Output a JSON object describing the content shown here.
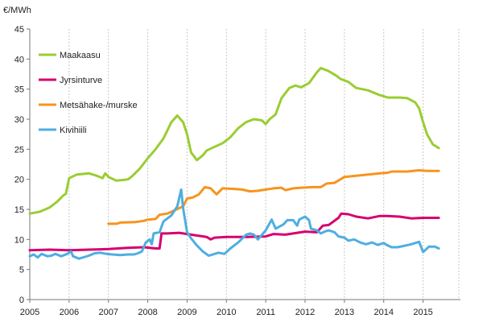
{
  "chart_data": {
    "type": "line",
    "title": "",
    "ylabel": "€/MWh",
    "xlabel": "",
    "xlim": [
      2005,
      2015.5
    ],
    "ylim": [
      0,
      45
    ],
    "x_ticks": [
      "2005",
      "2006",
      "2007",
      "2008",
      "2009",
      "2010",
      "2011",
      "2012",
      "2013",
      "2014",
      "2015"
    ],
    "y_ticks": [
      "0",
      "5",
      "10",
      "15",
      "20",
      "25",
      "30",
      "35",
      "40",
      "45"
    ],
    "grid": {
      "vertical": true,
      "horizontal": false
    },
    "legend_position": "top-left",
    "series": [
      {
        "name": "Maakaasu",
        "color": "#9acd32",
        "points": [
          [
            2005.0,
            14.3
          ],
          [
            2005.25,
            14.6
          ],
          [
            2005.5,
            15.3
          ],
          [
            2005.7,
            16.3
          ],
          [
            2005.85,
            17.3
          ],
          [
            2005.92,
            17.6
          ],
          [
            2006.0,
            20.2
          ],
          [
            2006.2,
            20.8
          ],
          [
            2006.5,
            21.0
          ],
          [
            2006.7,
            20.6
          ],
          [
            2006.85,
            20.2
          ],
          [
            2006.92,
            21.0
          ],
          [
            2007.0,
            20.4
          ],
          [
            2007.2,
            19.8
          ],
          [
            2007.4,
            19.9
          ],
          [
            2007.5,
            20.0
          ],
          [
            2007.6,
            20.5
          ],
          [
            2007.8,
            21.8
          ],
          [
            2008.0,
            23.5
          ],
          [
            2008.2,
            25.0
          ],
          [
            2008.4,
            26.8
          ],
          [
            2008.6,
            29.5
          ],
          [
            2008.75,
            30.6
          ],
          [
            2008.9,
            29.5
          ],
          [
            2009.0,
            27.5
          ],
          [
            2009.1,
            24.5
          ],
          [
            2009.25,
            23.2
          ],
          [
            2009.4,
            24.0
          ],
          [
            2009.5,
            24.8
          ],
          [
            2009.7,
            25.4
          ],
          [
            2009.9,
            26.0
          ],
          [
            2010.1,
            27.0
          ],
          [
            2010.3,
            28.5
          ],
          [
            2010.5,
            29.5
          ],
          [
            2010.7,
            30.0
          ],
          [
            2010.9,
            29.8
          ],
          [
            2011.0,
            29.2
          ],
          [
            2011.1,
            30.0
          ],
          [
            2011.25,
            30.8
          ],
          [
            2011.4,
            33.5
          ],
          [
            2011.6,
            35.2
          ],
          [
            2011.75,
            35.6
          ],
          [
            2011.9,
            35.3
          ],
          [
            2012.1,
            36.0
          ],
          [
            2012.3,
            37.8
          ],
          [
            2012.4,
            38.5
          ],
          [
            2012.6,
            38.0
          ],
          [
            2012.8,
            37.2
          ],
          [
            2012.9,
            36.7
          ],
          [
            2013.1,
            36.2
          ],
          [
            2013.3,
            35.2
          ],
          [
            2013.6,
            34.8
          ],
          [
            2013.9,
            34.0
          ],
          [
            2014.1,
            33.6
          ],
          [
            2014.4,
            33.6
          ],
          [
            2014.6,
            33.5
          ],
          [
            2014.8,
            32.8
          ],
          [
            2014.9,
            31.8
          ],
          [
            2015.0,
            29.5
          ],
          [
            2015.1,
            27.5
          ],
          [
            2015.25,
            25.8
          ],
          [
            2015.4,
            25.2
          ]
        ]
      },
      {
        "name": "Jyrsinturve",
        "color": "#d6006f",
        "points": [
          [
            2005.0,
            8.2
          ],
          [
            2005.5,
            8.3
          ],
          [
            2006.0,
            8.2
          ],
          [
            2006.5,
            8.3
          ],
          [
            2007.0,
            8.4
          ],
          [
            2007.5,
            8.6
          ],
          [
            2007.9,
            8.7
          ],
          [
            2008.2,
            8.5
          ],
          [
            2008.3,
            8.5
          ],
          [
            2008.35,
            11.0
          ],
          [
            2008.5,
            11.0
          ],
          [
            2008.8,
            11.1
          ],
          [
            2009.0,
            10.9
          ],
          [
            2009.5,
            10.4
          ],
          [
            2009.6,
            10.0
          ],
          [
            2009.7,
            10.3
          ],
          [
            2010.0,
            10.4
          ],
          [
            2010.5,
            10.4
          ],
          [
            2011.0,
            10.5
          ],
          [
            2011.2,
            10.9
          ],
          [
            2011.5,
            10.8
          ],
          [
            2011.8,
            11.1
          ],
          [
            2012.0,
            11.3
          ],
          [
            2012.3,
            11.2
          ],
          [
            2012.45,
            12.3
          ],
          [
            2012.6,
            12.4
          ],
          [
            2012.85,
            13.6
          ],
          [
            2012.92,
            14.3
          ],
          [
            2013.1,
            14.2
          ],
          [
            2013.3,
            13.8
          ],
          [
            2013.6,
            13.5
          ],
          [
            2013.9,
            13.9
          ],
          [
            2014.1,
            13.9
          ],
          [
            2014.4,
            13.8
          ],
          [
            2014.7,
            13.5
          ],
          [
            2015.0,
            13.6
          ],
          [
            2015.4,
            13.6
          ]
        ]
      },
      {
        "name": "Metsähake-/murske",
        "color": "#f7941d",
        "points": [
          [
            2007.0,
            12.6
          ],
          [
            2007.2,
            12.6
          ],
          [
            2007.3,
            12.8
          ],
          [
            2007.7,
            12.9
          ],
          [
            2007.9,
            13.1
          ],
          [
            2008.0,
            13.3
          ],
          [
            2008.2,
            13.4
          ],
          [
            2008.3,
            14.1
          ],
          [
            2008.5,
            14.3
          ],
          [
            2008.7,
            14.9
          ],
          [
            2008.9,
            15.5
          ],
          [
            2009.0,
            16.8
          ],
          [
            2009.15,
            17.0
          ],
          [
            2009.3,
            17.5
          ],
          [
            2009.45,
            18.7
          ],
          [
            2009.6,
            18.5
          ],
          [
            2009.75,
            17.5
          ],
          [
            2009.9,
            18.5
          ],
          [
            2010.2,
            18.4
          ],
          [
            2010.4,
            18.3
          ],
          [
            2010.6,
            18.0
          ],
          [
            2010.8,
            18.1
          ],
          [
            2011.0,
            18.3
          ],
          [
            2011.2,
            18.5
          ],
          [
            2011.4,
            18.6
          ],
          [
            2011.5,
            18.2
          ],
          [
            2011.7,
            18.5
          ],
          [
            2011.9,
            18.6
          ],
          [
            2012.2,
            18.7
          ],
          [
            2012.4,
            18.7
          ],
          [
            2012.55,
            19.3
          ],
          [
            2012.75,
            19.4
          ],
          [
            2012.85,
            19.8
          ],
          [
            2013.0,
            20.4
          ],
          [
            2013.3,
            20.6
          ],
          [
            2013.6,
            20.8
          ],
          [
            2013.9,
            21.0
          ],
          [
            2014.1,
            21.1
          ],
          [
            2014.2,
            21.3
          ],
          [
            2014.4,
            21.3
          ],
          [
            2014.6,
            21.3
          ],
          [
            2014.9,
            21.5
          ],
          [
            2015.1,
            21.4
          ],
          [
            2015.4,
            21.4
          ]
        ]
      },
      {
        "name": "Kivihiili",
        "color": "#4eaee1",
        "points": [
          [
            2005.0,
            7.2
          ],
          [
            2005.1,
            7.5
          ],
          [
            2005.2,
            7.0
          ],
          [
            2005.3,
            7.6
          ],
          [
            2005.45,
            7.2
          ],
          [
            2005.55,
            7.3
          ],
          [
            2005.65,
            7.6
          ],
          [
            2005.8,
            7.2
          ],
          [
            2005.95,
            7.6
          ],
          [
            2006.05,
            8.0
          ],
          [
            2006.1,
            7.2
          ],
          [
            2006.25,
            6.8
          ],
          [
            2006.4,
            7.1
          ],
          [
            2006.5,
            7.3
          ],
          [
            2006.65,
            7.7
          ],
          [
            2006.8,
            7.8
          ],
          [
            2006.95,
            7.6
          ],
          [
            2007.1,
            7.5
          ],
          [
            2007.3,
            7.4
          ],
          [
            2007.5,
            7.5
          ],
          [
            2007.65,
            7.5
          ],
          [
            2007.75,
            7.7
          ],
          [
            2007.85,
            8.0
          ],
          [
            2007.95,
            9.5
          ],
          [
            2008.05,
            10.0
          ],
          [
            2008.1,
            9.2
          ],
          [
            2008.15,
            11.0
          ],
          [
            2008.3,
            11.2
          ],
          [
            2008.4,
            13.0
          ],
          [
            2008.6,
            14.0
          ],
          [
            2008.7,
            15.0
          ],
          [
            2008.75,
            15.5
          ],
          [
            2008.85,
            18.3
          ],
          [
            2008.9,
            15.2
          ],
          [
            2009.0,
            11.2
          ],
          [
            2009.1,
            10.2
          ],
          [
            2009.25,
            9.0
          ],
          [
            2009.4,
            8.0
          ],
          [
            2009.55,
            7.3
          ],
          [
            2009.7,
            7.6
          ],
          [
            2009.8,
            7.8
          ],
          [
            2009.95,
            7.6
          ],
          [
            2010.1,
            8.5
          ],
          [
            2010.3,
            9.5
          ],
          [
            2010.5,
            10.8
          ],
          [
            2010.6,
            11.0
          ],
          [
            2010.7,
            10.8
          ],
          [
            2010.8,
            10.0
          ],
          [
            2011.0,
            11.5
          ],
          [
            2011.15,
            13.3
          ],
          [
            2011.25,
            11.8
          ],
          [
            2011.45,
            12.5
          ],
          [
            2011.55,
            13.2
          ],
          [
            2011.7,
            13.2
          ],
          [
            2011.8,
            12.3
          ],
          [
            2011.85,
            13.3
          ],
          [
            2012.0,
            13.8
          ],
          [
            2012.1,
            13.2
          ],
          [
            2012.15,
            11.8
          ],
          [
            2012.3,
            11.5
          ],
          [
            2012.4,
            11.0
          ],
          [
            2012.5,
            11.3
          ],
          [
            2012.6,
            11.5
          ],
          [
            2012.75,
            11.2
          ],
          [
            2012.85,
            10.5
          ],
          [
            2013.0,
            10.3
          ],
          [
            2013.1,
            9.8
          ],
          [
            2013.25,
            10.0
          ],
          [
            2013.4,
            9.5
          ],
          [
            2013.55,
            9.2
          ],
          [
            2013.7,
            9.5
          ],
          [
            2013.85,
            9.1
          ],
          [
            2014.0,
            9.4
          ],
          [
            2014.1,
            9.0
          ],
          [
            2014.2,
            8.7
          ],
          [
            2014.35,
            8.7
          ],
          [
            2014.5,
            8.9
          ],
          [
            2014.7,
            9.2
          ],
          [
            2014.9,
            9.6
          ],
          [
            2015.0,
            7.9
          ],
          [
            2015.15,
            8.8
          ],
          [
            2015.3,
            8.8
          ],
          [
            2015.4,
            8.5
          ]
        ]
      }
    ]
  }
}
